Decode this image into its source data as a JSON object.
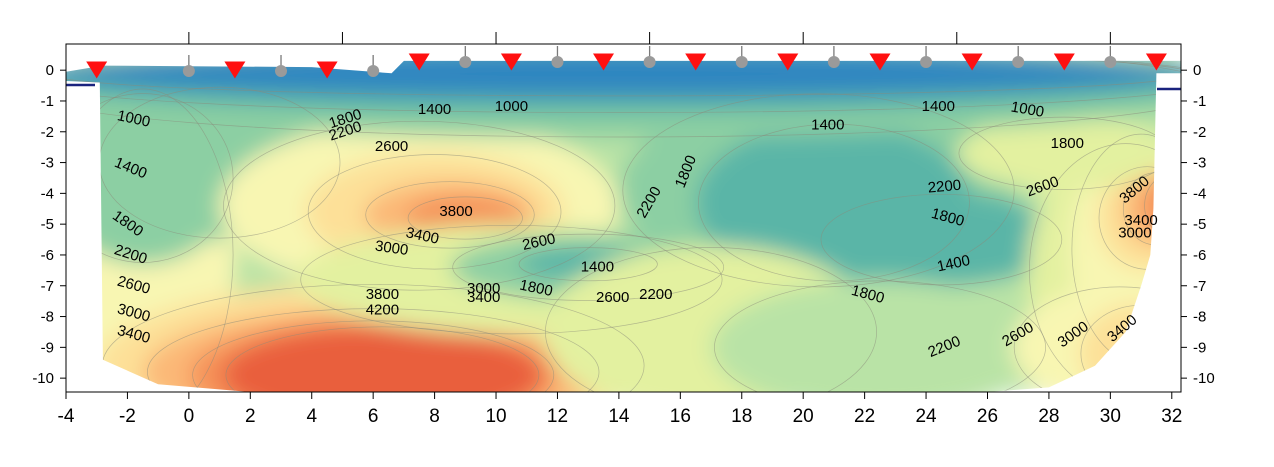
{
  "chart_data": {
    "type": "heatmap",
    "title": "",
    "xlabel": "",
    "ylabel": "",
    "xlim": [
      -4,
      32.3
    ],
    "ylim": [
      -10.45,
      0.85
    ],
    "x_ticks": [
      -4,
      -2,
      0,
      2,
      4,
      6,
      8,
      10,
      12,
      14,
      16,
      18,
      20,
      22,
      24,
      26,
      28,
      30,
      32
    ],
    "y_ticks": [
      0,
      -1,
      -2,
      -3,
      -4,
      -5,
      -6,
      -7,
      -8,
      -9,
      -10
    ],
    "grid": false,
    "colors": {
      "v1000": "#2e86c1",
      "v1400": "#5ab5a7",
      "v1800": "#8ccfa3",
      "v2200": "#b9e3a6",
      "v2600": "#e3f1a0",
      "v3000": "#f8f6b2",
      "v3400": "#fde098",
      "v3800": "#fbb877",
      "v4200": "#f59158",
      "v4600": "#e95f3d"
    },
    "contour_levels": [
      1000,
      1400,
      1800,
      2200,
      2600,
      3000,
      3400,
      3800,
      4200
    ],
    "contour_labels": [
      {
        "text": "1000",
        "x": -1.8,
        "y": -1.6,
        "rot": 12
      },
      {
        "text": "1400",
        "x": -1.9,
        "y": -3.2,
        "rot": 22
      },
      {
        "text": "1800",
        "x": -2.0,
        "y": -5.0,
        "rot": 35
      },
      {
        "text": "2200",
        "x": -1.9,
        "y": -6.0,
        "rot": 18
      },
      {
        "text": "2600",
        "x": -1.8,
        "y": -7.0,
        "rot": 15
      },
      {
        "text": "3000",
        "x": -1.8,
        "y": -7.9,
        "rot": 15
      },
      {
        "text": "3400",
        "x": -1.8,
        "y": -8.6,
        "rot": 15
      },
      {
        "text": "1800",
        "x": 5.1,
        "y": -1.6,
        "rot": -18
      },
      {
        "text": "2200",
        "x": 5.1,
        "y": -2.0,
        "rot": -18
      },
      {
        "text": "2600",
        "x": 6.6,
        "y": -2.5,
        "rot": 0
      },
      {
        "text": "1400",
        "x": 8.0,
        "y": -1.3,
        "rot": 0
      },
      {
        "text": "1000",
        "x": 10.5,
        "y": -1.2,
        "rot": 0
      },
      {
        "text": "3800",
        "x": 8.7,
        "y": -4.6,
        "rot": 0
      },
      {
        "text": "3400",
        "x": 7.6,
        "y": -5.4,
        "rot": 12
      },
      {
        "text": "3000",
        "x": 6.6,
        "y": -5.8,
        "rot": 8
      },
      {
        "text": "2600",
        "x": 11.4,
        "y": -5.6,
        "rot": -12
      },
      {
        "text": "2200",
        "x": 15.0,
        "y": -4.3,
        "rot": -60
      },
      {
        "text": "1800",
        "x": 16.2,
        "y": -3.3,
        "rot": -68
      },
      {
        "text": "1400",
        "x": 13.3,
        "y": -6.4,
        "rot": 0
      },
      {
        "text": "1800",
        "x": 11.3,
        "y": -7.1,
        "rot": 12
      },
      {
        "text": "2600",
        "x": 13.8,
        "y": -7.4,
        "rot": 0
      },
      {
        "text": "2200",
        "x": 15.2,
        "y": -7.3,
        "rot": 0
      },
      {
        "text": "3000",
        "x": 9.6,
        "y": -7.1,
        "rot": 0
      },
      {
        "text": "3400",
        "x": 9.6,
        "y": -7.4,
        "rot": 0
      },
      {
        "text": "3800",
        "x": 6.3,
        "y": -7.3,
        "rot": 0
      },
      {
        "text": "4200",
        "x": 6.3,
        "y": -7.8,
        "rot": 0
      },
      {
        "text": "1400",
        "x": 20.8,
        "y": -1.8,
        "rot": 0
      },
      {
        "text": "1800",
        "x": 22.1,
        "y": -7.3,
        "rot": 15
      },
      {
        "text": "1400",
        "x": 24.9,
        "y": -6.3,
        "rot": -12
      },
      {
        "text": "1800",
        "x": 24.7,
        "y": -4.8,
        "rot": 15
      },
      {
        "text": "2200",
        "x": 24.6,
        "y": -3.8,
        "rot": -5
      },
      {
        "text": "2600",
        "x": 27.8,
        "y": -3.8,
        "rot": -20
      },
      {
        "text": "1400",
        "x": 24.4,
        "y": -1.2,
        "rot": 0
      },
      {
        "text": "1000",
        "x": 27.3,
        "y": -1.3,
        "rot": 10
      },
      {
        "text": "1800",
        "x": 28.6,
        "y": -2.4,
        "rot": 0
      },
      {
        "text": "3800",
        "x": 30.8,
        "y": -3.9,
        "rot": -40
      },
      {
        "text": "3400",
        "x": 31.0,
        "y": -4.9,
        "rot": 0
      },
      {
        "text": "3000",
        "x": 30.8,
        "y": -5.3,
        "rot": 0
      },
      {
        "text": "2200",
        "x": 24.6,
        "y": -9.0,
        "rot": -22
      },
      {
        "text": "2600",
        "x": 27.0,
        "y": -8.6,
        "rot": -30
      },
      {
        "text": "3000",
        "x": 28.8,
        "y": -8.6,
        "rot": -35
      },
      {
        "text": "3400",
        "x": 30.4,
        "y": -8.4,
        "rot": -40
      }
    ],
    "sources": [
      -3,
      1.5,
      4.5,
      7.5,
      10.5,
      13.5,
      16.5,
      19.5,
      22.5,
      25.5,
      28.5,
      31.5
    ],
    "receivers": [
      0,
      3,
      6,
      9,
      12,
      15,
      18,
      21,
      24,
      27,
      30
    ]
  }
}
